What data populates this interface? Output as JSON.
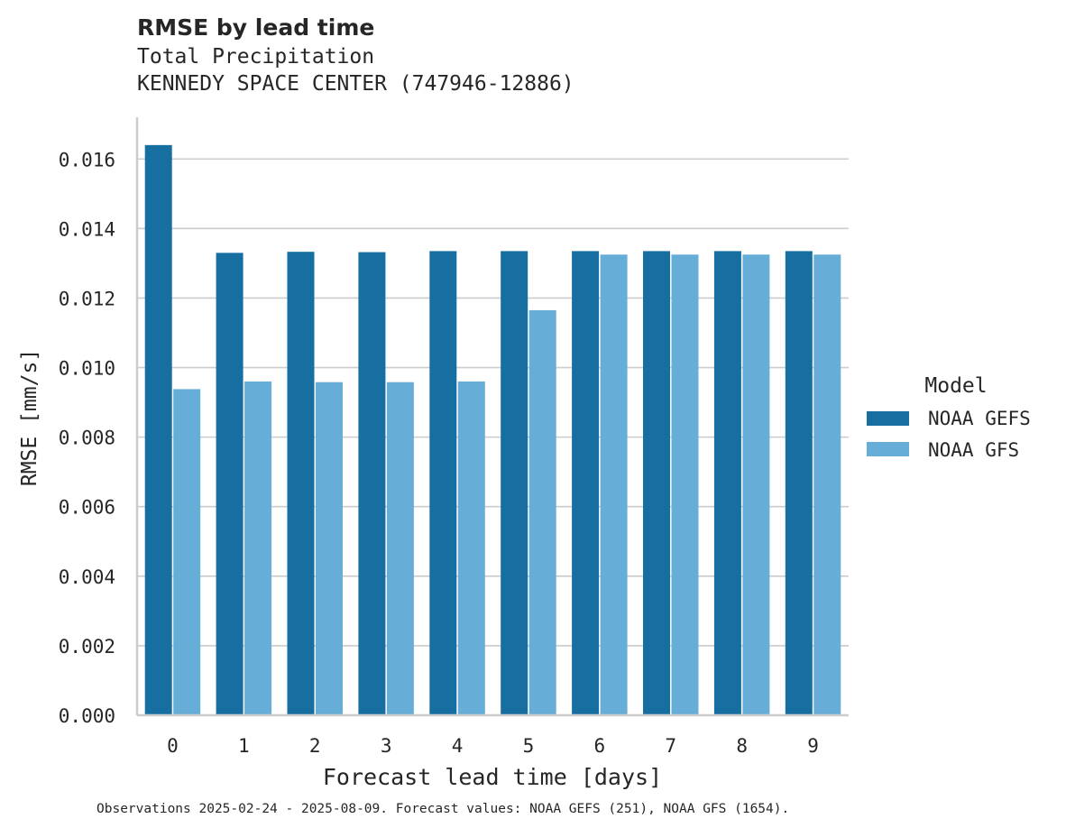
{
  "chart_data": {
    "type": "bar",
    "title": "RMSE by lead time",
    "subtitle_lines": [
      "Total Precipitation",
      "KENNEDY SPACE CENTER (747946-12886)"
    ],
    "xlabel": "Forecast lead time [days]",
    "ylabel": "RMSE [mm/s]",
    "categories": [
      "0",
      "1",
      "2",
      "3",
      "4",
      "5",
      "6",
      "7",
      "8",
      "9"
    ],
    "series": [
      {
        "name": "NOAA GEFS",
        "color": "#176ea0",
        "values": [
          0.0164,
          0.0133,
          0.01333,
          0.01332,
          0.01335,
          0.01335,
          0.01335,
          0.01335,
          0.01335,
          0.01335
        ]
      },
      {
        "name": "NOAA GFS",
        "color": "#66aed7",
        "values": [
          0.00938,
          0.0096,
          0.00958,
          0.00958,
          0.0096,
          0.01165,
          0.01325,
          0.01325,
          0.01325,
          0.01325
        ]
      }
    ],
    "ylim": [
      0,
      0.0172
    ],
    "yticks": [
      "0.000",
      "0.002",
      "0.004",
      "0.006",
      "0.008",
      "0.010",
      "0.012",
      "0.014",
      "0.016"
    ],
    "grid": "horizontal",
    "legend": {
      "title": "Model",
      "position": "right"
    },
    "footnote": "Observations 2025-02-24 - 2025-08-09. Forecast values: NOAA GEFS (251), NOAA GFS (1654)."
  }
}
